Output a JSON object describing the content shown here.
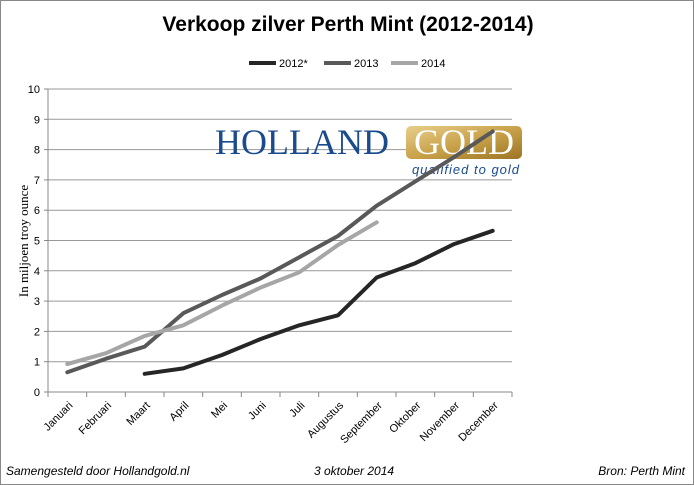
{
  "chart_data": {
    "type": "line",
    "title": "Verkoop zilver Perth Mint (2012-2014)",
    "xlabel": "",
    "ylabel": "In miljoen troy ounce",
    "ylim": [
      0,
      10
    ],
    "yticks": [
      "0",
      "1",
      "2",
      "3",
      "4",
      "5",
      "6",
      "7",
      "8",
      "9",
      "10"
    ],
    "categories": [
      "Januari",
      "Februari",
      "Maart",
      "April",
      "Mei",
      "Juni",
      "Juli",
      "Augustus",
      "September",
      "Oktober",
      "November",
      "December"
    ],
    "grid": true,
    "legend": "top",
    "series": [
      {
        "name": "2012*",
        "color": "#262626",
        "values": [
          null,
          null,
          0.6,
          0.78,
          1.22,
          1.75,
          2.2,
          2.53,
          3.78,
          4.25,
          4.88,
          5.32
        ]
      },
      {
        "name": "2013",
        "color": "#595959",
        "values": [
          0.65,
          1.1,
          1.5,
          2.6,
          3.2,
          3.75,
          4.45,
          5.15,
          6.15,
          6.95,
          7.75,
          8.6
        ]
      },
      {
        "name": "2014",
        "color": "#a6a6a6",
        "values": [
          0.92,
          1.28,
          1.85,
          2.2,
          2.85,
          3.45,
          3.95,
          4.85,
          5.6,
          null,
          null,
          null
        ]
      }
    ]
  },
  "logo": {
    "word1": "HOLLAND",
    "word2": "GOLD",
    "tagline": "qualified to gold"
  },
  "footer": {
    "left": "Samengesteld door Hollandgold.nl",
    "center": "3 oktober 2014",
    "right": "Bron: Perth Mint"
  }
}
